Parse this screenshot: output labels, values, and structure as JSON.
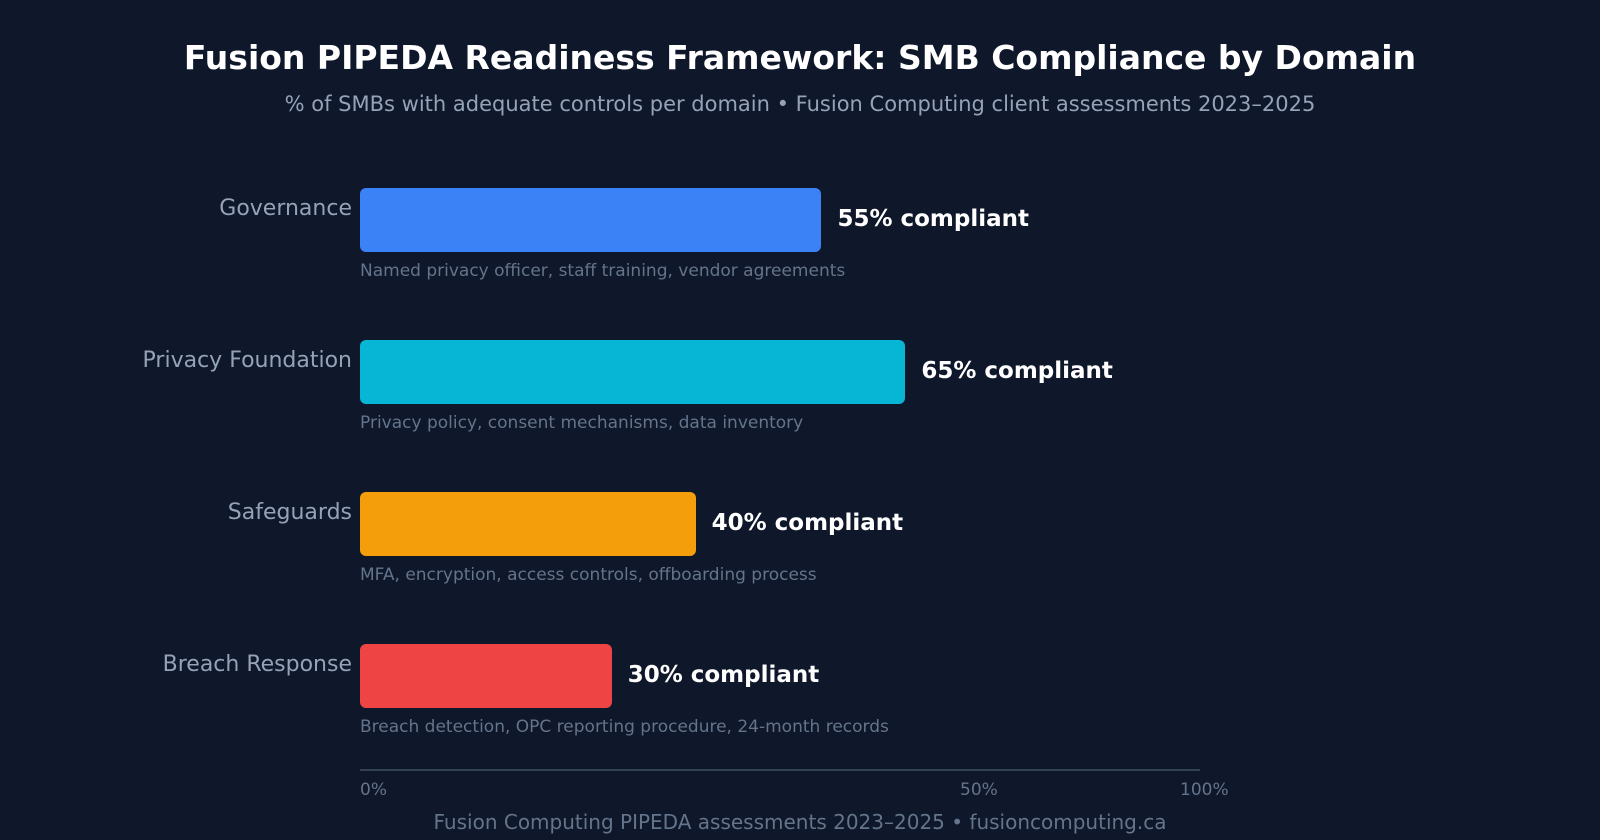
{
  "chart_data": {
    "type": "bar",
    "orientation": "horizontal",
    "title": "Fusion PIPEDA Readiness Framework: SMB Compliance by Domain",
    "subtitle": "% of SMBs with adequate controls per domain • Fusion Computing client assessments 2023–2025",
    "categories": [
      "Governance",
      "Privacy Foundation",
      "Safeguards",
      "Breach Response"
    ],
    "values": [
      55,
      65,
      40,
      30
    ],
    "value_labels": [
      "55% compliant",
      "65% compliant",
      "40% compliant",
      "30% compliant"
    ],
    "descriptions": [
      "Named privacy officer, staff training, vendor agreements",
      "Privacy policy, consent mechanisms, data inventory",
      "MFA, encryption, access controls, offboarding process",
      "Breach detection, OPC reporting procedure, 24-month records"
    ],
    "colors": [
      "#3b82f6",
      "#06b6d4",
      "#f59e0b",
      "#ef4444"
    ],
    "xlim": [
      0,
      100
    ],
    "tick_labels": [
      "0%",
      "50%",
      "100%"
    ],
    "grid": false,
    "footer": "Fusion Computing PIPEDA assessments 2023–2025 • fusioncomputing.ca"
  }
}
